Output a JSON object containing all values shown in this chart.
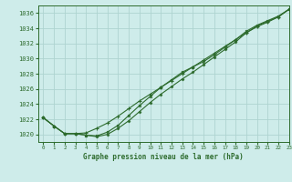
{
  "title": "Graphe pression niveau de la mer (hPa)",
  "background_color": "#ceecea",
  "grid_color": "#aed4d0",
  "line_color": "#2d6b2d",
  "xlim": [
    -0.5,
    23
  ],
  "ylim": [
    1019.0,
    1037.0
  ],
  "yticks": [
    1020,
    1022,
    1024,
    1026,
    1028,
    1030,
    1032,
    1034,
    1036
  ],
  "xticks": [
    0,
    1,
    2,
    3,
    4,
    5,
    6,
    7,
    8,
    9,
    10,
    11,
    12,
    13,
    14,
    15,
    16,
    17,
    18,
    19,
    20,
    21,
    22,
    23
  ],
  "series1": [
    1022.2,
    1021.1,
    1020.1,
    1020.1,
    1020.2,
    1020.8,
    1021.5,
    1022.4,
    1023.4,
    1024.4,
    1025.3,
    1026.2,
    1027.1,
    1028.0,
    1028.9,
    1029.8,
    1030.7,
    1031.6,
    1032.5,
    1033.4,
    1034.3,
    1034.9,
    1035.5,
    1036.5
  ],
  "series2": [
    1022.2,
    1021.1,
    1020.1,
    1020.1,
    1019.9,
    1019.8,
    1020.3,
    1021.2,
    1022.5,
    1023.8,
    1025.0,
    1026.2,
    1027.2,
    1028.2,
    1028.9,
    1029.6,
    1030.5,
    1031.5,
    1032.5,
    1033.6,
    1034.4,
    1035.0,
    1035.6,
    1036.5
  ],
  "series3": [
    1022.2,
    1021.1,
    1020.1,
    1020.1,
    1019.9,
    1019.7,
    1020.0,
    1020.8,
    1021.8,
    1023.0,
    1024.2,
    1025.3,
    1026.3,
    1027.3,
    1028.2,
    1029.2,
    1030.2,
    1031.2,
    1032.2,
    1033.4,
    1034.2,
    1034.8,
    1035.5,
    1036.5
  ]
}
